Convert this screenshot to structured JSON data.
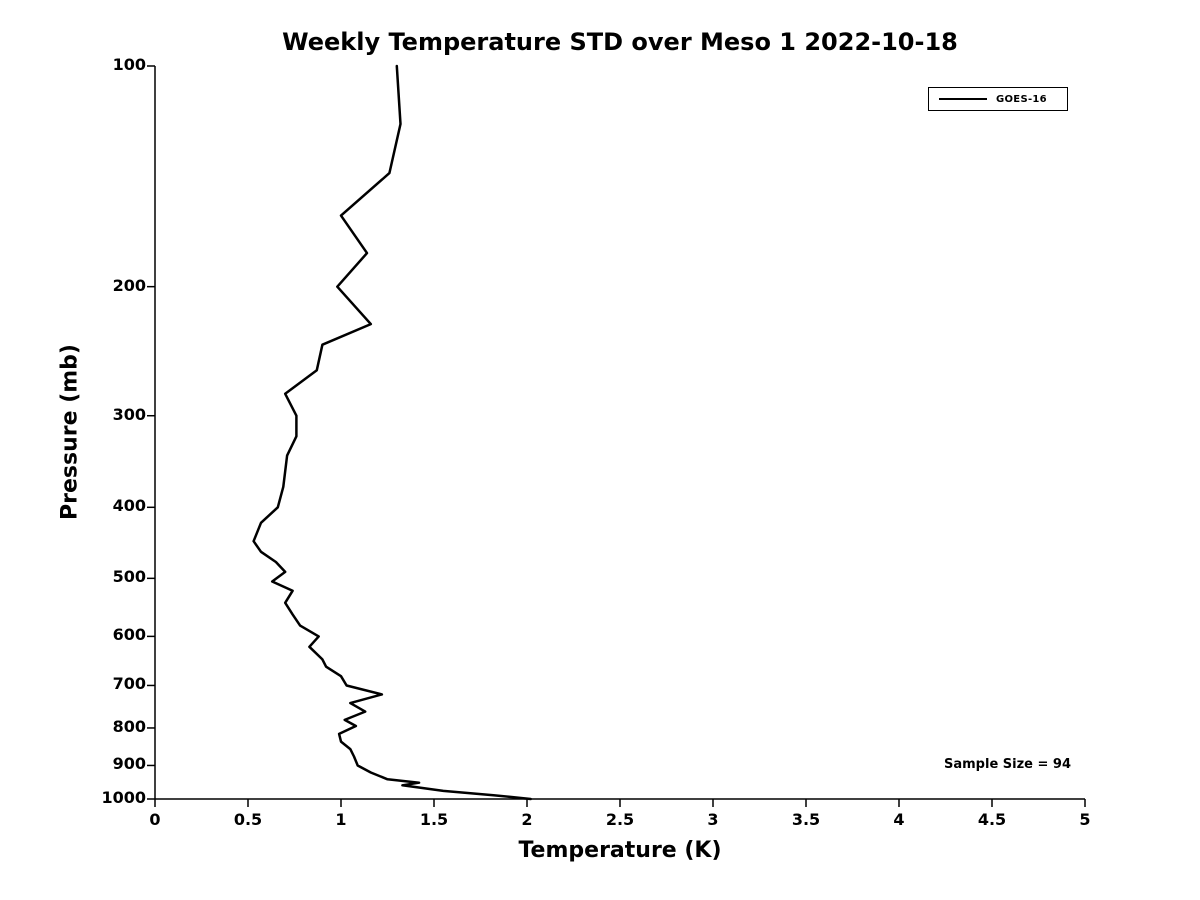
{
  "chart_data": {
    "type": "line",
    "title": "Weekly Temperature STD over Meso 1 2022-10-18",
    "xlabel": "Temperature (K)",
    "ylabel": "Pressure (mb)",
    "xlim": [
      0,
      5
    ],
    "ylim": [
      100,
      1000
    ],
    "y_scale": "log",
    "y_inverted": true,
    "grid": false,
    "background": "#ffffff",
    "axis_color": "#000000",
    "legend_position": "top-right",
    "x_ticks": [
      "0",
      "0.5",
      "1",
      "1.5",
      "2",
      "2.5",
      "3",
      "3.5",
      "4",
      "4.5",
      "5"
    ],
    "y_ticks": [
      "100",
      "200",
      "300",
      "400",
      "500",
      "600",
      "700",
      "800",
      "900",
      "1000"
    ],
    "series": [
      {
        "name": "GOES-16",
        "color": "#000000",
        "line_width": 2.5,
        "points_format": "[temperature_K, pressure_mb]",
        "points": [
          [
            1.3,
            100
          ],
          [
            1.32,
            120
          ],
          [
            1.26,
            140
          ],
          [
            1.0,
            160
          ],
          [
            1.14,
            180
          ],
          [
            0.98,
            200
          ],
          [
            1.16,
            225
          ],
          [
            0.9,
            240
          ],
          [
            0.87,
            260
          ],
          [
            0.7,
            280
          ],
          [
            0.76,
            300
          ],
          [
            0.76,
            320
          ],
          [
            0.71,
            340
          ],
          [
            0.69,
            375
          ],
          [
            0.66,
            400
          ],
          [
            0.57,
            420
          ],
          [
            0.53,
            445
          ],
          [
            0.57,
            460
          ],
          [
            0.65,
            475
          ],
          [
            0.7,
            490
          ],
          [
            0.63,
            505
          ],
          [
            0.74,
            520
          ],
          [
            0.7,
            540
          ],
          [
            0.74,
            560
          ],
          [
            0.78,
            580
          ],
          [
            0.88,
            600
          ],
          [
            0.83,
            620
          ],
          [
            0.9,
            645
          ],
          [
            0.92,
            660
          ],
          [
            1.0,
            680
          ],
          [
            1.03,
            700
          ],
          [
            1.22,
            720
          ],
          [
            1.05,
            740
          ],
          [
            1.13,
            760
          ],
          [
            1.02,
            780
          ],
          [
            1.08,
            795
          ],
          [
            0.99,
            815
          ],
          [
            1.0,
            835
          ],
          [
            1.05,
            855
          ],
          [
            1.07,
            875
          ],
          [
            1.09,
            900
          ],
          [
            1.16,
            920
          ],
          [
            1.25,
            940
          ],
          [
            1.42,
            950
          ],
          [
            1.33,
            958
          ],
          [
            1.55,
            975
          ],
          [
            1.82,
            988
          ],
          [
            2.02,
            1000
          ]
        ]
      }
    ],
    "annotations": [
      {
        "text": "Sample Size = 94",
        "position": "bottom-right"
      }
    ]
  }
}
